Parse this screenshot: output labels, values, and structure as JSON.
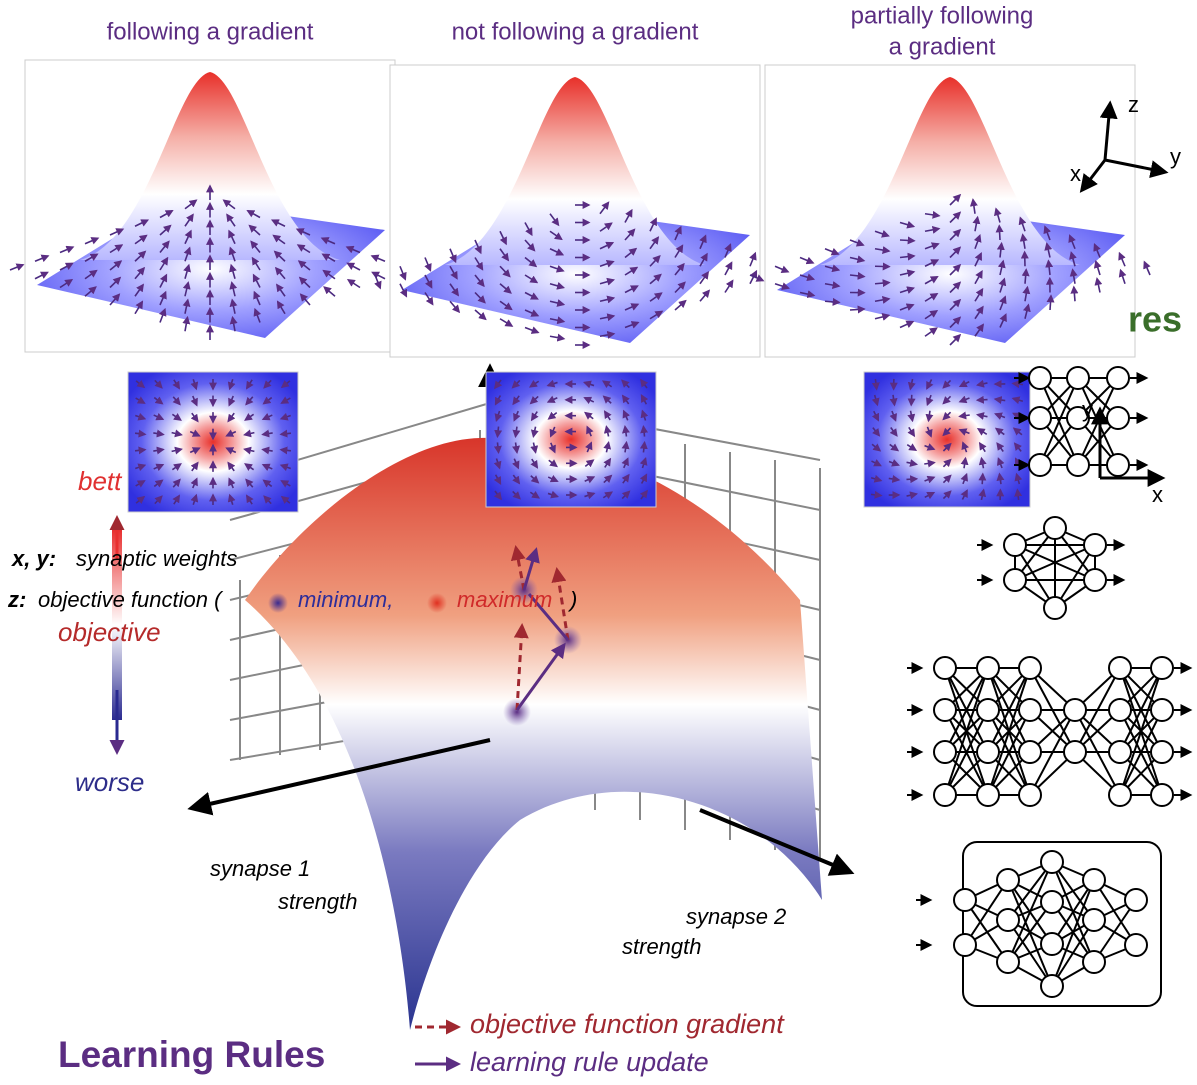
{
  "panels": [
    {
      "title_lines": [
        "following a gradient"
      ]
    },
    {
      "title_lines": [
        "not following a gradient"
      ]
    },
    {
      "title_lines": [
        "partially following",
        "a gradient"
      ]
    }
  ],
  "coordinate_axes": {
    "z": "z",
    "y": "y",
    "x": "x"
  },
  "network_axes": {
    "y": "y",
    "x": "x"
  },
  "architectures_label": "res",
  "objective_scale": {
    "top": "bett",
    "middle": "objective",
    "bottom": "worse"
  },
  "definitions": {
    "weights_term": "x, y:",
    "weights_text": "synaptic weights",
    "objective_term": "z:",
    "objective_text": "objective function (",
    "minimum": "minimum,",
    "maximum": "maximum",
    "close": ")"
  },
  "surface_axes": {
    "synapse1": [
      "synapse 1",
      "strength"
    ],
    "synapse2": [
      "synapse 2",
      "strength"
    ]
  },
  "legend": {
    "gradient": "objective function gradient",
    "update": "learning rule update"
  },
  "title": "Learning Rules"
}
